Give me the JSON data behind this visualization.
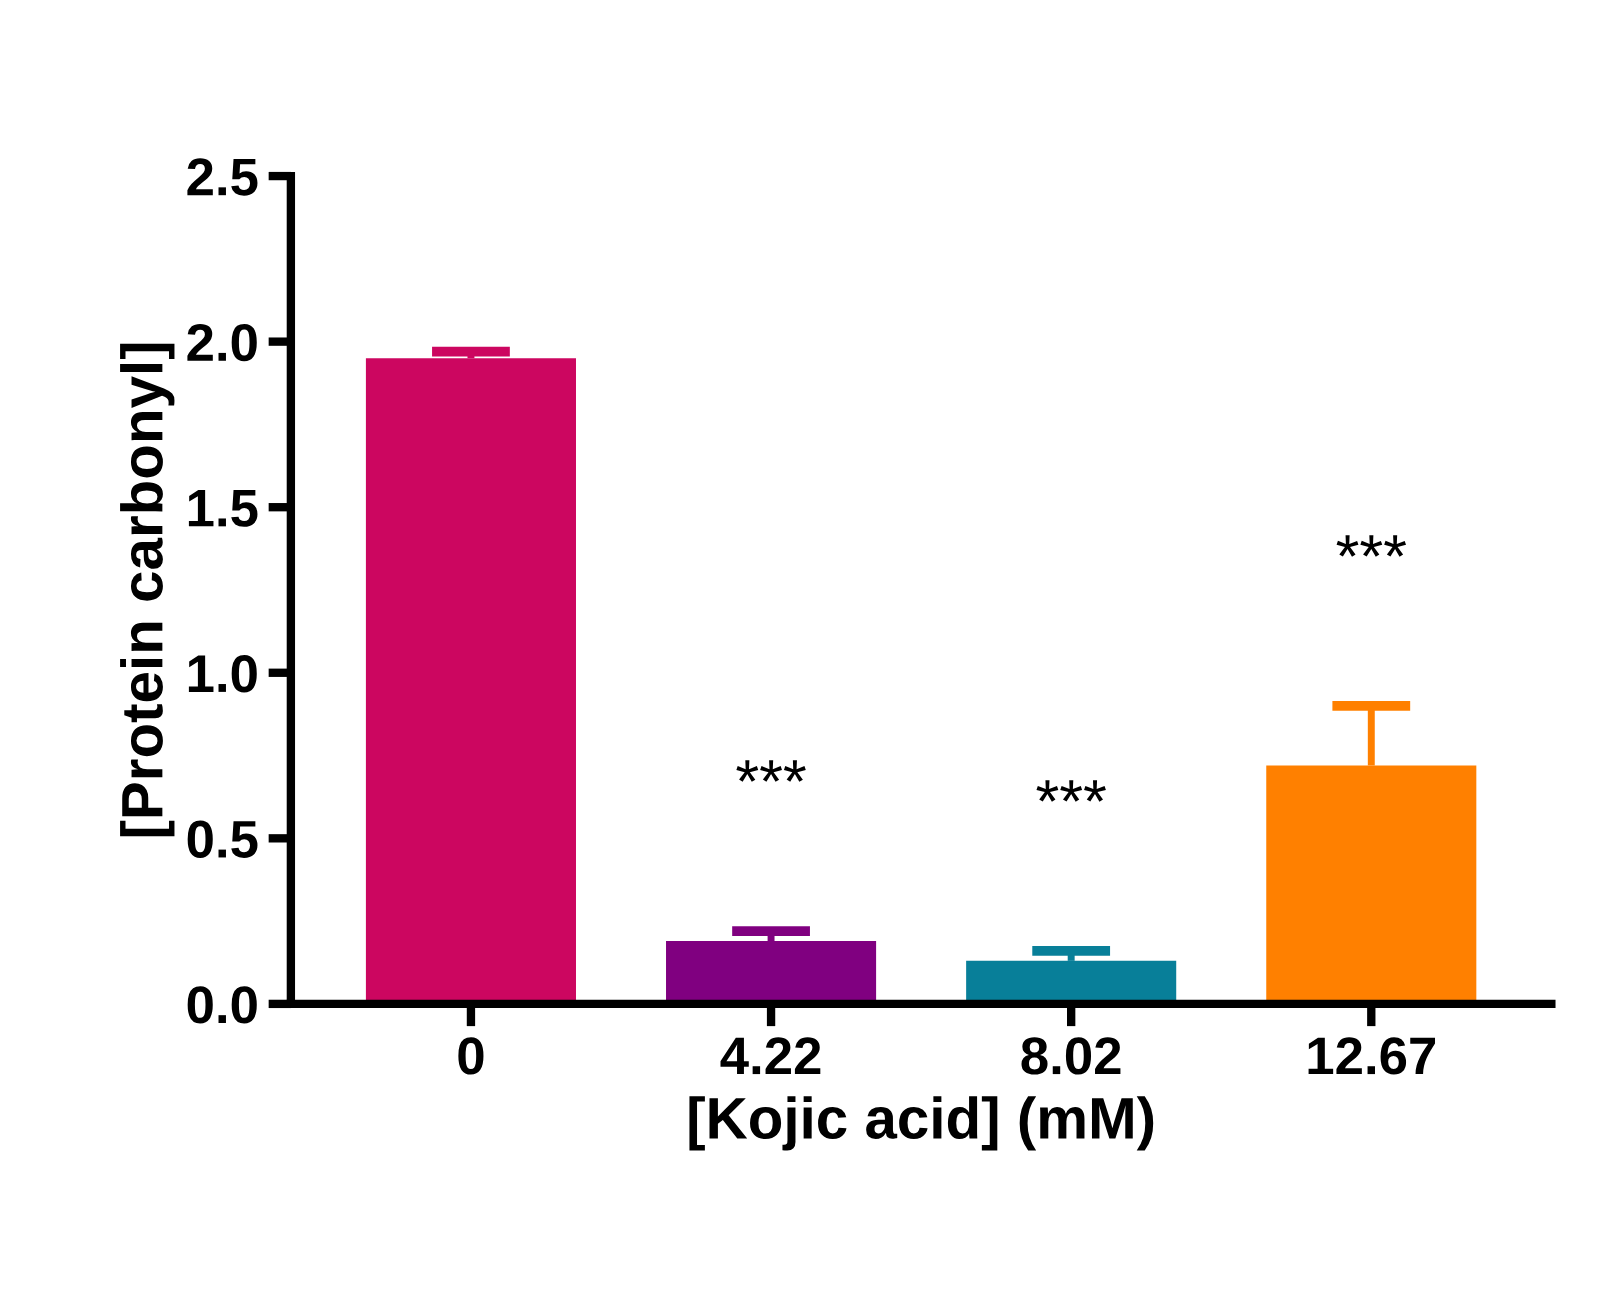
{
  "chart_data": {
    "type": "bar",
    "xlabel": "[Kojic acid] (mM)",
    "ylabel": "[Protein carbonyl]",
    "categories": [
      "0",
      "4.22",
      "8.02",
      "12.67"
    ],
    "values": [
      1.95,
      0.19,
      0.13,
      0.72
    ],
    "colors": [
      "#cc0660",
      "#800080",
      "#087f99",
      "#ff8000"
    ],
    "errors": [
      [
        1.95,
        1.97
      ],
      [
        0.19,
        0.22
      ],
      [
        0.13,
        0.16
      ],
      [
        0.72,
        0.9
      ]
    ],
    "ylim": [
      0,
      2.5
    ],
    "yticks": [
      {
        "value": 0,
        "label": "0.0"
      },
      {
        "value": 0.5,
        "label": "0.5"
      },
      {
        "value": 1,
        "label": "1.0"
      },
      {
        "value": 1.5,
        "label": "1.5"
      },
      {
        "value": 2,
        "label": "2.0"
      },
      {
        "value": 2.5,
        "label": "2.5"
      }
    ],
    "grid": false,
    "legend": false,
    "annotations": [
      "***",
      "***",
      "***"
    ]
  }
}
